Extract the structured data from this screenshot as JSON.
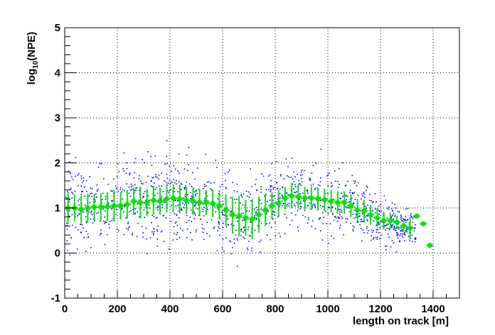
{
  "chart_data": {
    "type": "scatter",
    "title": "",
    "xlabel": "length on track [m]",
    "ylabel_main": "log",
    "ylabel_sub": "10",
    "ylabel_rest": "(NPE)",
    "xlim": [
      0,
      1500
    ],
    "ylim": [
      -1,
      5
    ],
    "xticks": [
      0,
      200,
      400,
      600,
      800,
      1000,
      1200,
      1400
    ],
    "xtick_labels": [
      "0",
      "200",
      "400",
      "600",
      "800",
      "1000",
      "1200",
      "1400"
    ],
    "yticks": [
      -1,
      0,
      1,
      2,
      3,
      4,
      5
    ],
    "ytick_labels": [
      "-1",
      "0",
      "1",
      "2",
      "3",
      "4",
      "5"
    ],
    "grid": true,
    "colors": {
      "points": "#0000ff",
      "profile": "#00e600",
      "axes": "#000000",
      "grid": "#000000"
    },
    "scatter_density_profile": {
      "x": [
        0,
        100,
        200,
        260,
        300,
        400,
        500,
        550,
        600,
        650,
        700,
        750,
        800,
        850,
        900,
        1000,
        1100,
        1150,
        1200,
        1250,
        1300,
        1380
      ],
      "center": [
        1.0,
        1.05,
        1.05,
        1.15,
        1.15,
        1.2,
        1.15,
        1.05,
        0.85,
        0.75,
        0.75,
        0.95,
        1.2,
        1.3,
        1.25,
        1.2,
        1.1,
        0.95,
        0.75,
        0.65,
        0.55,
        0.4
      ],
      "spread": [
        0.45,
        0.45,
        0.45,
        0.45,
        0.45,
        0.45,
        0.45,
        0.45,
        0.45,
        0.45,
        0.45,
        0.45,
        0.4,
        0.4,
        0.4,
        0.4,
        0.35,
        0.35,
        0.3,
        0.25,
        0.2,
        0.15
      ]
    },
    "series": [
      {
        "name": "profile",
        "x": [
          12.5,
          37.5,
          62.5,
          87.5,
          112.5,
          137.5,
          162.5,
          187.5,
          212.5,
          237.5,
          262.5,
          287.5,
          312.5,
          337.5,
          362.5,
          387.5,
          412.5,
          437.5,
          462.5,
          487.5,
          512.5,
          537.5,
          562.5,
          587.5,
          612.5,
          637.5,
          662.5,
          687.5,
          712.5,
          737.5,
          762.5,
          787.5,
          812.5,
          837.5,
          862.5,
          887.5,
          912.5,
          937.5,
          962.5,
          987.5,
          1012.5,
          1037.5,
          1062.5,
          1087.5,
          1112.5,
          1137.5,
          1162.5,
          1187.5,
          1212.5,
          1237.5,
          1262.5,
          1287.5,
          1312.5,
          1337.5,
          1362.5,
          1387.5
        ],
        "y": [
          1.0,
          1.0,
          0.97,
          1.0,
          1.02,
          1.02,
          1.03,
          1.05,
          1.05,
          1.08,
          1.15,
          1.12,
          1.12,
          1.17,
          1.15,
          1.2,
          1.22,
          1.2,
          1.17,
          1.15,
          1.12,
          1.12,
          1.1,
          1.05,
          0.95,
          0.85,
          0.82,
          0.78,
          0.75,
          0.85,
          0.95,
          1.05,
          1.1,
          1.22,
          1.27,
          1.25,
          1.22,
          1.22,
          1.2,
          1.18,
          1.15,
          1.12,
          1.12,
          1.05,
          0.95,
          0.93,
          0.85,
          0.78,
          0.72,
          0.72,
          0.68,
          0.6,
          0.55,
          0.82,
          0.65,
          0.17
        ],
        "yerr": [
          0.35,
          0.3,
          0.3,
          0.32,
          0.3,
          0.3,
          0.32,
          0.35,
          0.3,
          0.32,
          0.3,
          0.35,
          0.3,
          0.32,
          0.3,
          0.3,
          0.3,
          0.32,
          0.3,
          0.3,
          0.3,
          0.28,
          0.3,
          0.3,
          0.35,
          0.4,
          0.45,
          0.4,
          0.45,
          0.4,
          0.35,
          0.3,
          0.3,
          0.25,
          0.28,
          0.27,
          0.25,
          0.25,
          0.25,
          0.25,
          0.25,
          0.25,
          0.25,
          0.25,
          0.25,
          0.25,
          0.22,
          0.2,
          0.2,
          0.18,
          0.15,
          0.12,
          0.25,
          0.05,
          0.05,
          0.05
        ]
      }
    ]
  }
}
